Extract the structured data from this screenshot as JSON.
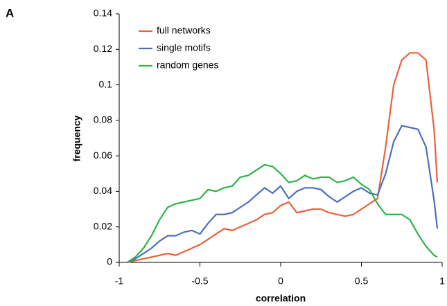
{
  "chart_data": {
    "type": "line",
    "panel_label": "A",
    "x_label": "correlation",
    "y_label": "frequency",
    "x": [
      -0.95,
      -0.9,
      -0.85,
      -0.8,
      -0.75,
      -0.7,
      -0.65,
      -0.6,
      -0.55,
      -0.5,
      -0.45,
      -0.4,
      -0.35,
      -0.3,
      -0.25,
      -0.2,
      -0.15,
      -0.1,
      -0.05,
      0,
      0.05,
      0.1,
      0.15,
      0.2,
      0.25,
      0.3,
      0.35,
      0.4,
      0.45,
      0.5,
      0.55,
      0.6,
      0.65,
      0.7,
      0.75,
      0.8,
      0.85,
      0.9,
      0.95,
      0.97
    ],
    "series": [
      {
        "name": "full networks",
        "color": "#e8623a",
        "values": [
          0,
          0.001,
          0.002,
          0.003,
          0.004,
          0.005,
          0.004,
          0.006,
          0.008,
          0.01,
          0.013,
          0.016,
          0.019,
          0.018,
          0.02,
          0.022,
          0.024,
          0.027,
          0.028,
          0.032,
          0.034,
          0.028,
          0.029,
          0.03,
          0.03,
          0.028,
          0.027,
          0.026,
          0.027,
          0.03,
          0.033,
          0.036,
          0.065,
          0.1,
          0.114,
          0.118,
          0.118,
          0.114,
          0.075,
          0.045
        ]
      },
      {
        "name": "single motifs",
        "color": "#4a6fbf",
        "values": [
          0,
          0.002,
          0.005,
          0.008,
          0.012,
          0.015,
          0.015,
          0.017,
          0.018,
          0.016,
          0.022,
          0.027,
          0.027,
          0.028,
          0.031,
          0.034,
          0.038,
          0.042,
          0.039,
          0.043,
          0.036,
          0.04,
          0.042,
          0.042,
          0.041,
          0.037,
          0.034,
          0.037,
          0.04,
          0.042,
          0.039,
          0.038,
          0.05,
          0.068,
          0.077,
          0.076,
          0.075,
          0.065,
          0.035,
          0.019
        ]
      },
      {
        "name": "random genes",
        "color": "#2db34a",
        "values": [
          0,
          0.003,
          0.008,
          0.015,
          0.024,
          0.031,
          0.033,
          0.034,
          0.035,
          0.036,
          0.041,
          0.04,
          0.042,
          0.043,
          0.048,
          0.049,
          0.052,
          0.055,
          0.054,
          0.05,
          0.045,
          0.046,
          0.049,
          0.047,
          0.048,
          0.048,
          0.045,
          0.046,
          0.048,
          0.044,
          0.041,
          0.033,
          0.027,
          0.027,
          0.027,
          0.024,
          0.016,
          0.009,
          0.004,
          0.003
        ]
      }
    ],
    "xlim": [
      -1,
      1
    ],
    "xticks": [
      -1,
      -0.5,
      0,
      0.5,
      1
    ],
    "ylim": [
      0,
      0.14
    ],
    "yticks": [
      0,
      0.02,
      0.04,
      0.06,
      0.08,
      0.1,
      0.12,
      0.14
    ],
    "grid": false,
    "legend": "upper left"
  }
}
